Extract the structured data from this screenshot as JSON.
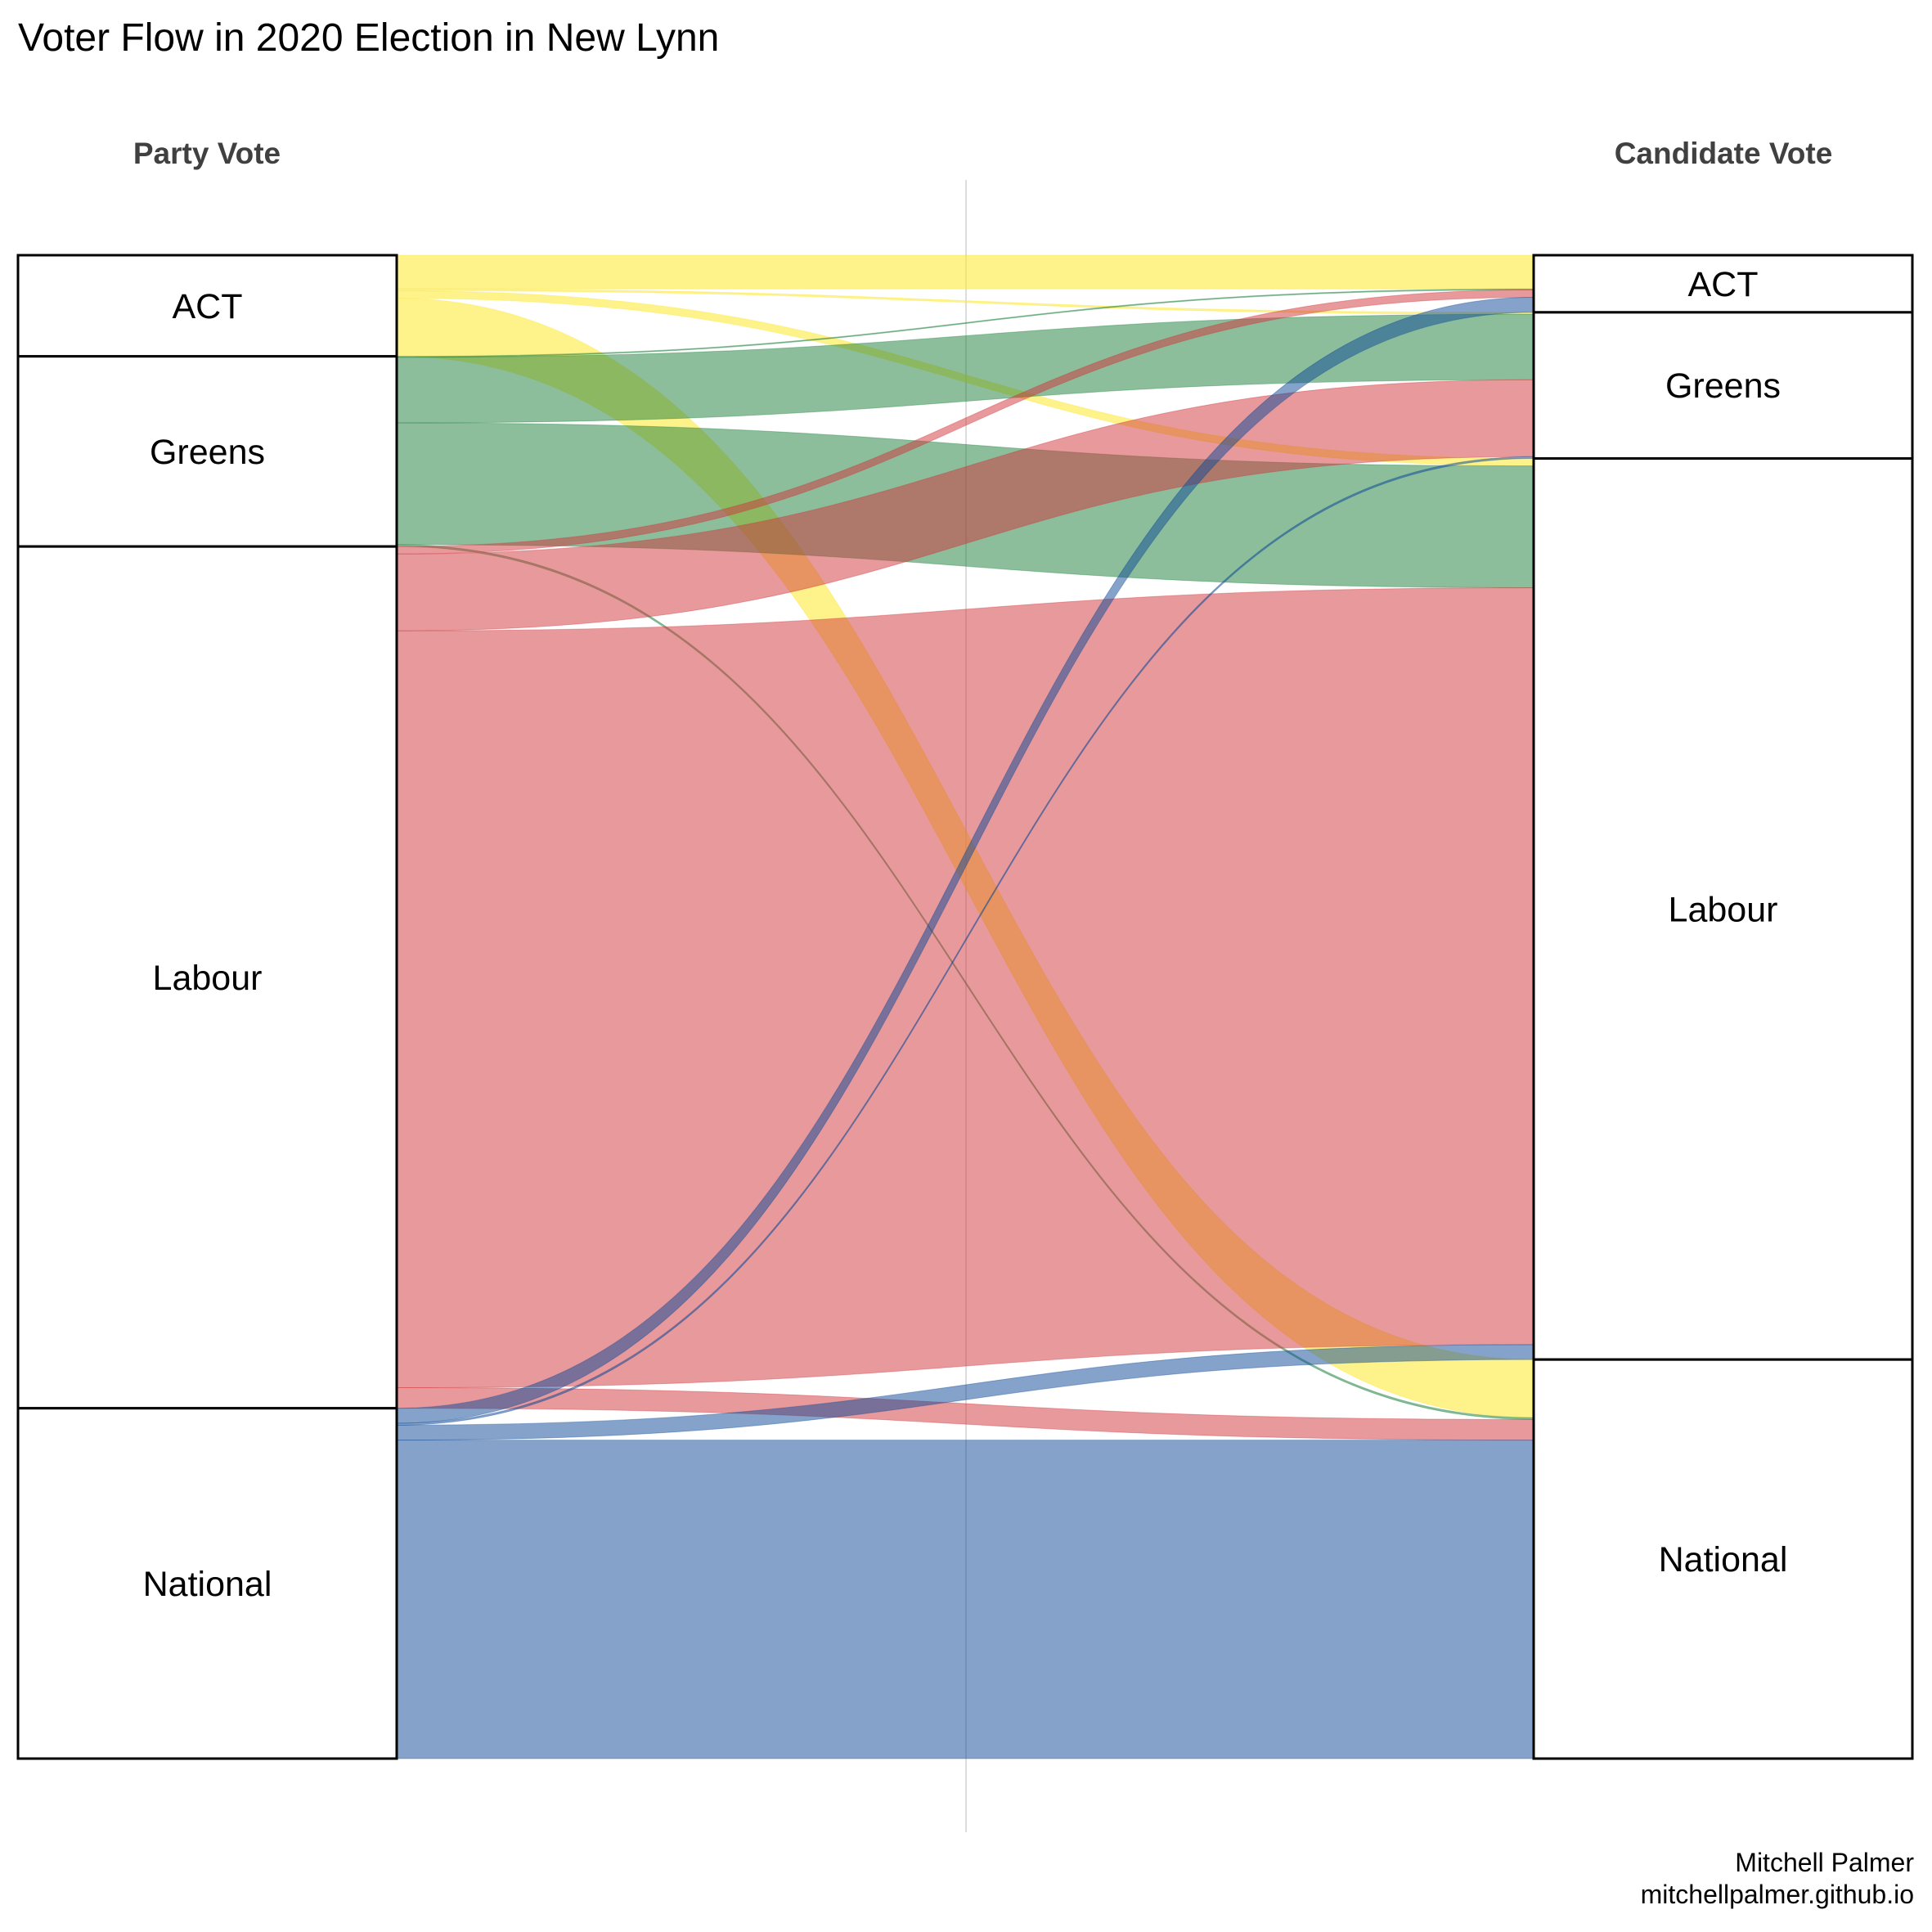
{
  "chart_data": {
    "type": "sankey",
    "title": "Voter Flow in 2020 Election in New Lynn",
    "stages": [
      "Party Vote",
      "Candidate Vote"
    ],
    "left_nodes": [
      "ACT",
      "Greens",
      "Labour",
      "National"
    ],
    "right_nodes": [
      "ACT",
      "Greens",
      "Labour",
      "National"
    ],
    "colors": {
      "ACT": "#fde93c",
      "Greens": "#1a7d3a",
      "Labour": "#d0333a",
      "National": "#0b4795"
    },
    "flows": [
      {
        "from": "ACT",
        "to": "ACT",
        "value": 1.8
      },
      {
        "from": "ACT",
        "to": "Greens",
        "value": 0.1
      },
      {
        "from": "ACT",
        "to": "Labour",
        "value": 0.4
      },
      {
        "from": "ACT",
        "to": "National",
        "value": 3.1
      },
      {
        "from": "Greens",
        "to": "ACT",
        "value": 0.05
      },
      {
        "from": "Greens",
        "to": "Greens",
        "value": 3.5
      },
      {
        "from": "Greens",
        "to": "Labour",
        "value": 6.5
      },
      {
        "from": "Greens",
        "to": "National",
        "value": 0.1
      },
      {
        "from": "Labour",
        "to": "ACT",
        "value": 0.4
      },
      {
        "from": "Labour",
        "to": "Greens",
        "value": 4.1
      },
      {
        "from": "Labour",
        "to": "Labour",
        "value": 40.4
      },
      {
        "from": "Labour",
        "to": "National",
        "value": 1.1
      },
      {
        "from": "National",
        "to": "ACT",
        "value": 0.8
      },
      {
        "from": "National",
        "to": "Greens",
        "value": 0.1
      },
      {
        "from": "National",
        "to": "Labour",
        "value": 0.8
      },
      {
        "from": "National",
        "to": "National",
        "value": 17.0
      }
    ]
  },
  "caption": {
    "author": "Mitchell Palmer",
    "site": "mitchellpalmer.github.io"
  }
}
